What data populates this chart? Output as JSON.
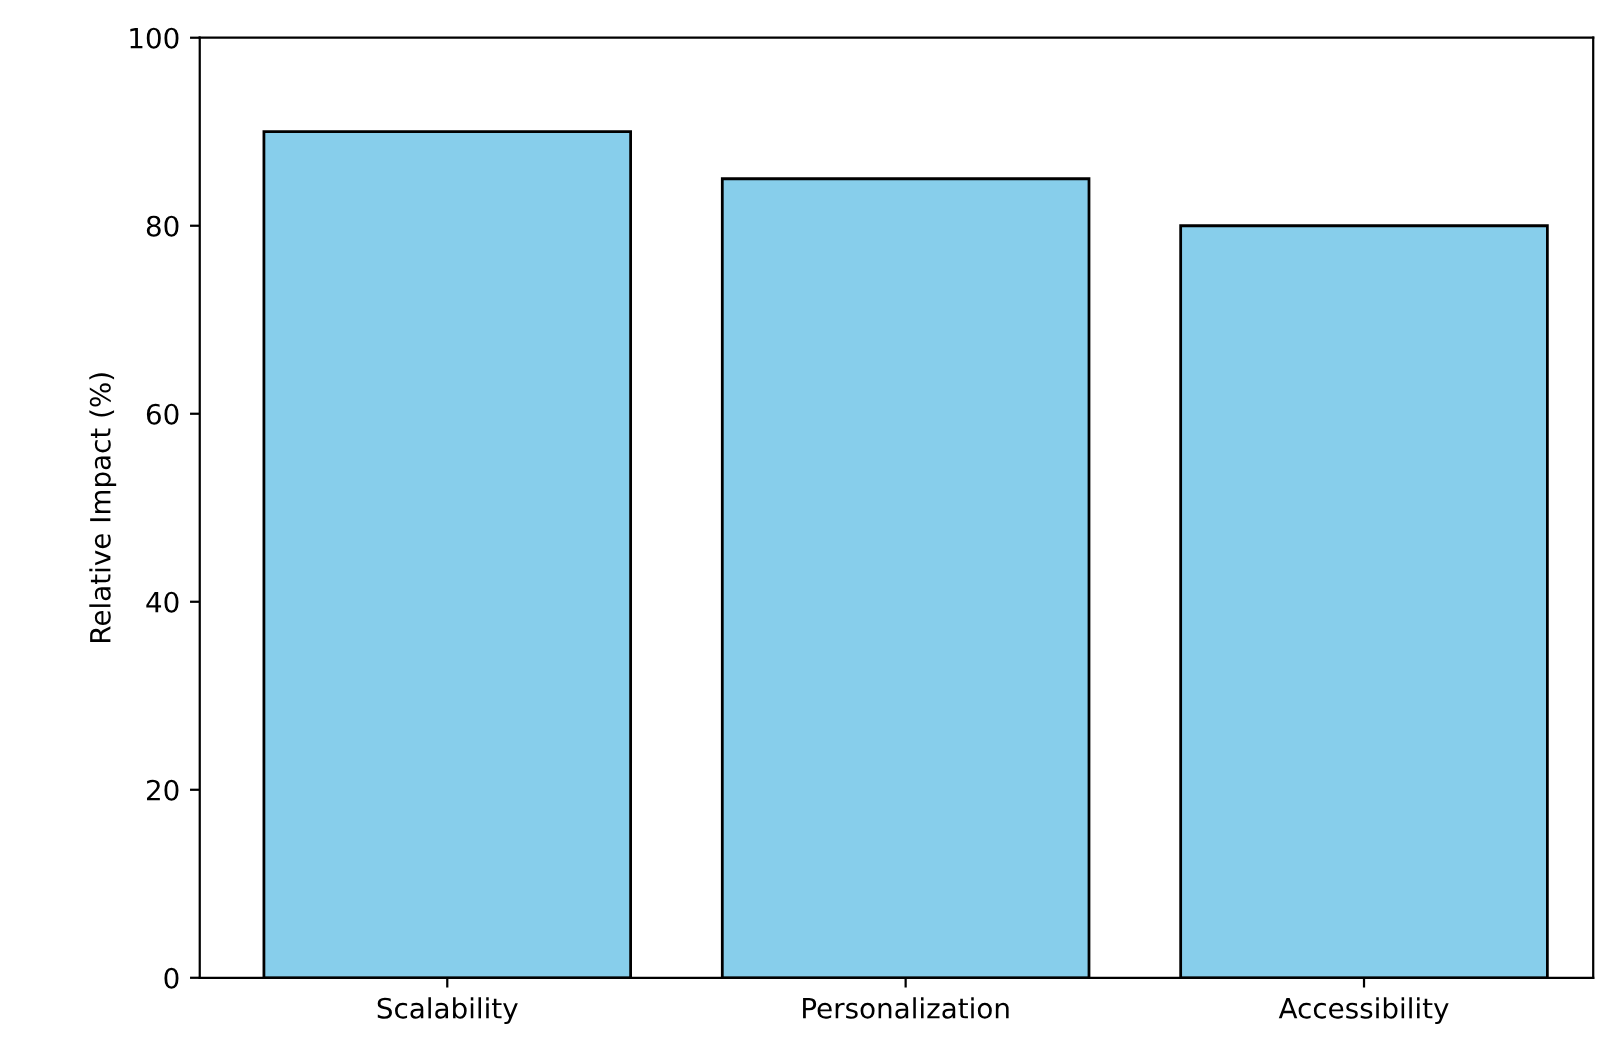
{
  "chart_data": {
    "type": "bar",
    "ylabel": "Relative Impact (%)",
    "categories": [
      "Scalability",
      "Personalization",
      "Accessibility"
    ],
    "values": [
      90,
      85,
      80
    ],
    "color": "#87ceeb",
    "ylim": [
      0,
      100
    ],
    "yticks": [
      0,
      20,
      40,
      60,
      80,
      100
    ],
    "grid": false
  }
}
